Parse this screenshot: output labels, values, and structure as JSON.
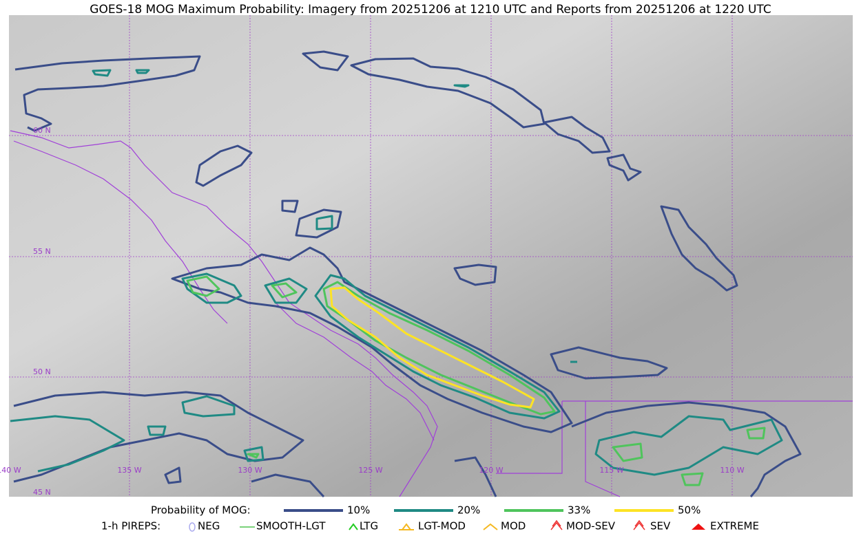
{
  "title": "GOES-18 MOG Maximum Probability: Imagery from 20251206 at 1210 UTC and Reports from 20251206 at 1220 UTC",
  "map": {
    "lat_labels": [
      "60 N",
      "55 N",
      "50 N",
      "45 N"
    ],
    "lon_labels": [
      "140 W",
      "135 W",
      "130 W",
      "125 W",
      "120 W",
      "115 W",
      "110 W"
    ]
  },
  "legend": {
    "mog_label": "Probability of MOG:",
    "mog_levels": [
      {
        "label": "10%",
        "color": "#3a4d89"
      },
      {
        "label": "20%",
        "color": "#1f8a84"
      },
      {
        "label": "33%",
        "color": "#4fc45c"
      },
      {
        "label": "50%",
        "color": "#fde325"
      }
    ],
    "pirep_label": "1-h PIREPS:",
    "pireps": [
      "NEG",
      "SMOOTH-LGT",
      "LTG",
      "LGT-MOD",
      "MOD",
      "MOD-SEV",
      "SEV",
      "EXTREME"
    ]
  }
}
